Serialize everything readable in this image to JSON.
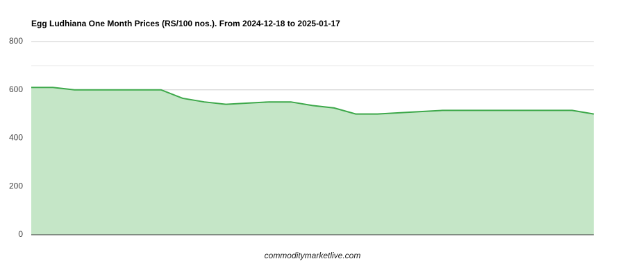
{
  "chart_data": {
    "type": "area",
    "title": "Egg Ludhiana One Month Prices (RS/100 nos.). From 2024-12-18 to 2025-01-17",
    "source": "commoditymarketlive.com",
    "values": [
      610,
      610,
      600,
      600,
      600,
      600,
      600,
      565,
      550,
      540,
      545,
      550,
      550,
      535,
      525,
      500,
      500,
      505,
      510,
      515,
      515,
      515,
      515,
      515,
      515,
      515,
      500
    ],
    "color": "#3da84a",
    "fill": "#c5e6c7",
    "ylim": [
      0,
      800
    ],
    "yticks": [
      0,
      200,
      400,
      600,
      800
    ],
    "minor_yticks": [
      100,
      300,
      500,
      700
    ],
    "grid": true
  }
}
